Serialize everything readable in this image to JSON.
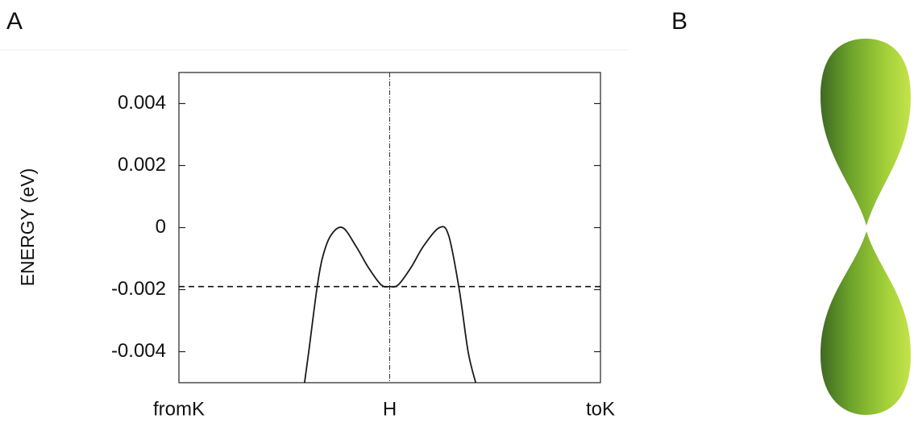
{
  "panel_labels": [
    "A",
    "B"
  ],
  "chart_data": {
    "type": "line",
    "ylabel": "ENERGY (eV)",
    "x": [
      0.298,
      0.308,
      0.327,
      0.34,
      0.36,
      0.388,
      0.42,
      0.45,
      0.48,
      0.5,
      0.52,
      0.55,
      0.58,
      0.618,
      0.64,
      0.665,
      0.686,
      0.704
    ],
    "series": [
      {
        "color": "#1a1a1a",
        "values": [
          -0.005,
          -0.004,
          -0.002,
          -0.001,
          -0.00026,
          0,
          -0.0006,
          -0.0013,
          -0.00185,
          -0.0019,
          -0.00185,
          -0.0013,
          -0.0006,
          0,
          -0.00026,
          -0.002,
          -0.004,
          -0.005
        ]
      }
    ],
    "hline": -0.0019,
    "xlim": [
      0,
      1
    ],
    "xticks": [
      {
        "value": 0,
        "label": "fromK"
      },
      {
        "value": 0.5,
        "label": "H"
      },
      {
        "value": 1,
        "label": "toK"
      }
    ],
    "ylim": [
      -0.005,
      0.005
    ],
    "yticks": [
      0.004,
      0.002,
      0,
      -0.002,
      -0.004
    ]
  }
}
